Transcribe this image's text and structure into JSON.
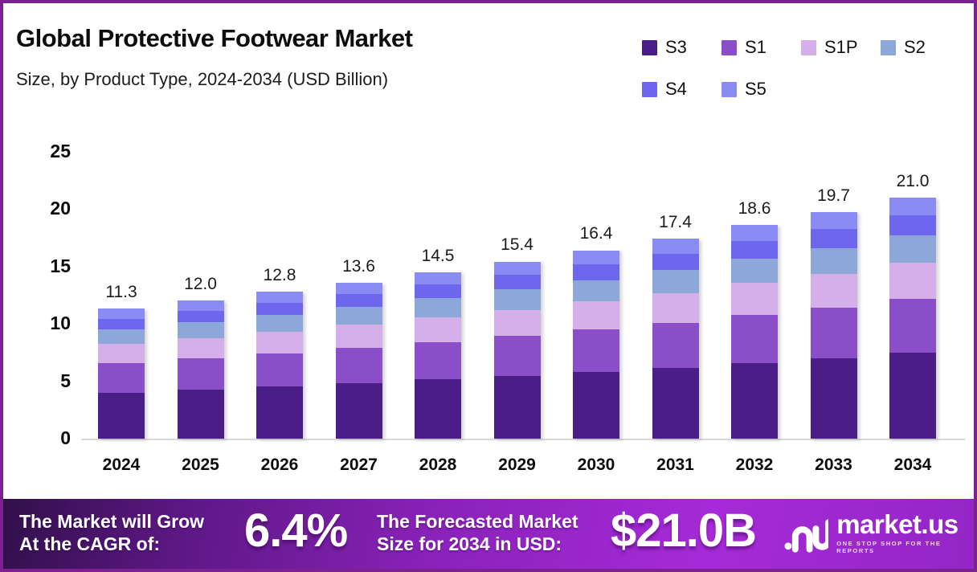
{
  "meta": {
    "title": "Global Protective Footwear Market",
    "subtitle": "Size, by Product Type, 2024-2034 (USD Billion)"
  },
  "chart_data": {
    "type": "bar",
    "stacked": true,
    "title": "Global Protective Footwear Market Size, by Product Type, 2024-2034 (USD Billion)",
    "categories": [
      "2024",
      "2025",
      "2026",
      "2027",
      "2028",
      "2029",
      "2030",
      "2031",
      "2032",
      "2033",
      "2034"
    ],
    "series": [
      {
        "name": "S3",
        "color": "#4a1d87",
        "values": [
          4.01,
          4.26,
          4.54,
          4.83,
          5.15,
          5.47,
          5.82,
          6.18,
          6.6,
          6.99,
          7.46
        ]
      },
      {
        "name": "S1",
        "color": "#8a4fc8",
        "values": [
          2.54,
          2.7,
          2.88,
          3.06,
          3.26,
          3.47,
          3.69,
          3.92,
          4.19,
          4.43,
          4.73
        ]
      },
      {
        "name": "S1P",
        "color": "#d4afe9",
        "values": [
          1.67,
          1.78,
          1.89,
          2.01,
          2.15,
          2.28,
          2.43,
          2.58,
          2.75,
          2.92,
          3.11
        ]
      },
      {
        "name": "S2",
        "color": "#8da8d8",
        "values": [
          1.29,
          1.37,
          1.46,
          1.55,
          1.65,
          1.76,
          1.87,
          1.98,
          2.12,
          2.25,
          2.39
        ]
      },
      {
        "name": "S4",
        "color": "#6f66ee",
        "values": [
          0.94,
          1.0,
          1.06,
          1.13,
          1.2,
          1.28,
          1.36,
          1.44,
          1.54,
          1.64,
          1.74
        ]
      },
      {
        "name": "S5",
        "color": "#8b8cf3",
        "values": [
          0.85,
          0.9,
          0.96,
          1.02,
          1.09,
          1.16,
          1.23,
          1.31,
          1.4,
          1.48,
          1.58
        ]
      }
    ],
    "totals_labels": [
      "11.3",
      "12.0",
      "12.8",
      "13.6",
      "14.5",
      "15.4",
      "16.4",
      "17.4",
      "18.6",
      "19.7",
      "21.0"
    ],
    "y_ticks": [
      0,
      5,
      10,
      15,
      20,
      25
    ],
    "ylim": [
      0,
      25
    ],
    "xlabel": "",
    "ylabel": "",
    "grid": false,
    "legend_position": "top-right",
    "legend_rows": [
      [
        "S3",
        "S1",
        "S1P",
        "S2"
      ],
      [
        "S4",
        "S5"
      ]
    ]
  },
  "banner": {
    "cagr_label_line1": "The Market will Grow",
    "cagr_label_line2": "At the CAGR of:",
    "cagr_value": "6.4%",
    "forecast_label_line1": "The Forecasted Market",
    "forecast_label_line2": "Size for 2034 in USD:",
    "forecast_value": "$21.0B",
    "brand_name": "market.us",
    "brand_tagline": "ONE STOP SHOP FOR THE REPORTS"
  },
  "colors": {
    "frame_border": "#7c2191",
    "axis_line": "#d9d9d9",
    "banner_gradient_start": "#31104a",
    "banner_gradient_mid": "#a62ad8",
    "banner_gradient_end": "#9326c6",
    "text_dark": "#0d0d0d",
    "text_light": "#ffffff"
  }
}
